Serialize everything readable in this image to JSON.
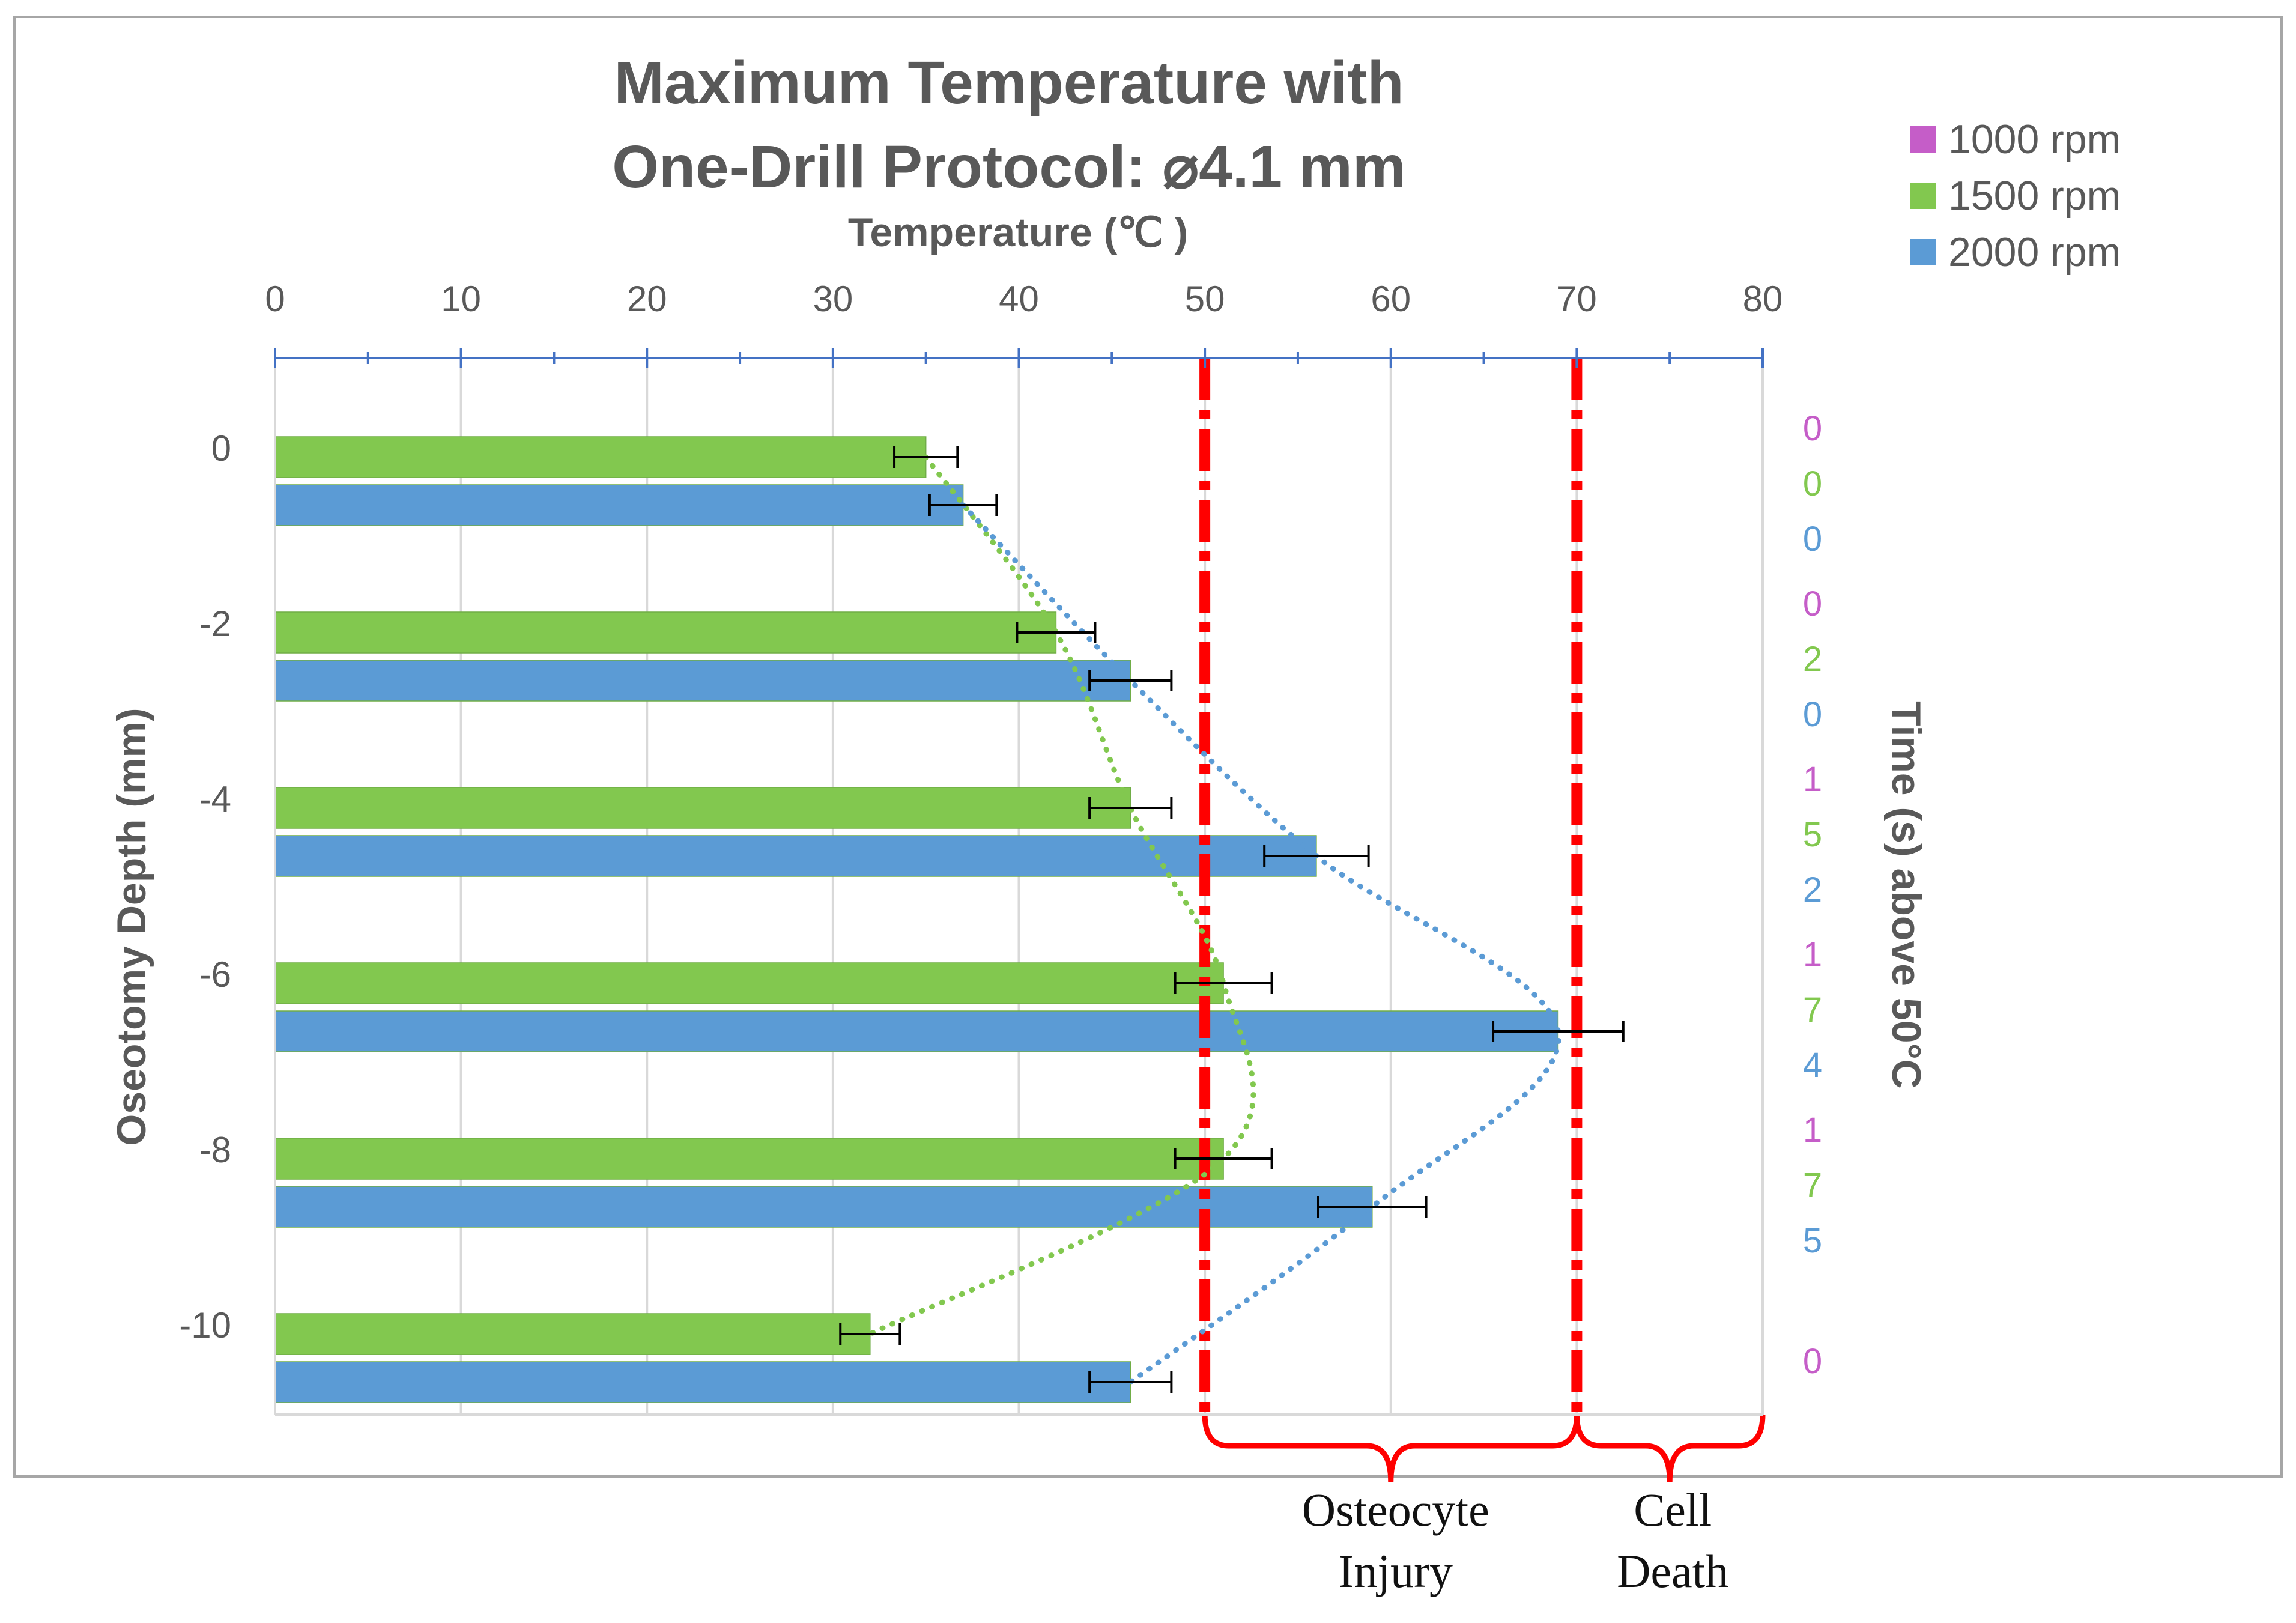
{
  "chart_data": {
    "type": "bar",
    "orientation": "horizontal",
    "title_lines": [
      "Maximum Temperature with",
      "One-Drill Protocol: ⌀4.1 mm"
    ],
    "xlabel": "Temperature (℃ )",
    "ylabel": "Oseotomy Depth (mm)",
    "y2label": "Time (s) above 50°C",
    "xlim": [
      0,
      80
    ],
    "xticks": [
      0,
      10,
      20,
      30,
      40,
      50,
      60,
      70,
      80
    ],
    "categories": [
      "0",
      "-2",
      "-4",
      "-6",
      "-8",
      "-10"
    ],
    "series": [
      {
        "name": "1000 rpm",
        "color": "#C55DC8",
        "values": [
          null,
          null,
          null,
          null,
          null,
          null
        ],
        "errors": [
          null,
          null,
          null,
          null,
          null,
          null
        ]
      },
      {
        "name": "1500 rpm",
        "color": "#82C84F",
        "values": [
          35,
          42,
          46,
          51,
          51,
          32
        ],
        "errors": [
          1.7,
          2.1,
          2.2,
          2.6,
          2.6,
          1.6
        ]
      },
      {
        "name": "2000 rpm",
        "color": "#5B9BD5",
        "values": [
          37,
          46,
          56,
          69,
          59,
          46
        ],
        "errors": [
          1.8,
          2.2,
          2.8,
          3.5,
          2.9,
          2.2
        ]
      }
    ],
    "trendlines": [
      {
        "series": "1500 rpm",
        "style": "dotted",
        "color": "#82C84F"
      },
      {
        "series": "2000 rpm",
        "style": "dotted",
        "color": "#5B9BD5"
      }
    ],
    "thresholds": [
      {
        "value": 50,
        "color": "#FF0000"
      },
      {
        "value": 70,
        "color": "#FF0000"
      }
    ],
    "zones": [
      {
        "from": 50,
        "to": 70,
        "label_lines": [
          "Osteocyte",
          "Injury"
        ]
      },
      {
        "from": 70,
        "to": 80,
        "label_lines": [
          "Cell",
          "Death"
        ]
      }
    ],
    "time_above_50": [
      {
        "1000 rpm": "0",
        "1500 rpm": "0",
        "2000 rpm": "0"
      },
      {
        "1000 rpm": "0",
        "1500 rpm": "2",
        "2000 rpm": "0"
      },
      {
        "1000 rpm": "1",
        "1500 rpm": "5",
        "2000 rpm": "2"
      },
      {
        "1000 rpm": "1",
        "1500 rpm": "7",
        "2000 rpm": "4"
      },
      {
        "1000 rpm": "1",
        "1500 rpm": "7",
        "2000 rpm": "5"
      },
      {
        "1000 rpm": "0"
      }
    ],
    "legend_position": "top-right",
    "grid": true
  }
}
